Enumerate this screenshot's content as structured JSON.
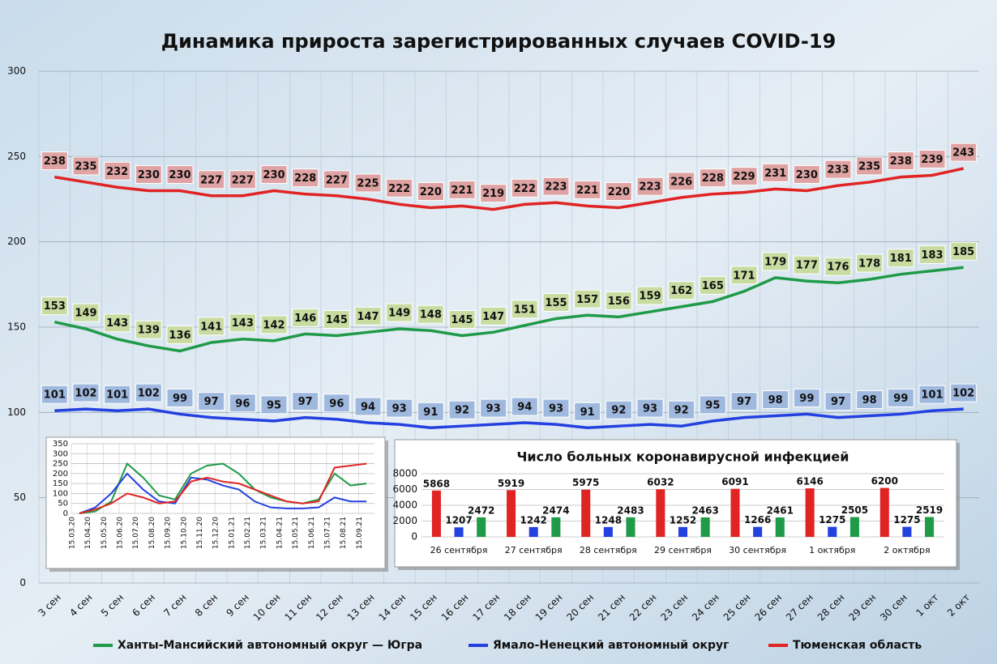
{
  "chart_data": [
    {
      "type": "line",
      "title": "Динамика прироста зарегистрированных случаев COVID-19",
      "categories": [
        "3 сен",
        "4 сен",
        "5 сен",
        "6 сен",
        "7 сен",
        "8 сен",
        "9 сен",
        "10 сен",
        "11 сен",
        "12 сен",
        "13 сен",
        "14 сен",
        "15 сен",
        "16 сен",
        "17 сен",
        "18 сен",
        "19 сен",
        "20 сен",
        "21 сен",
        "22 сен",
        "23 сен",
        "24 сен",
        "25 сен",
        "26 сен",
        "27 сен",
        "28 сен",
        "29 сен",
        "30 сен",
        "1 окт",
        "2 окт"
      ],
      "series": [
        {
          "name": "Ханты-Мансийский автономный округ — Югра",
          "color": "#1f9a48",
          "label_color": "#c8dca2",
          "values": [
            153,
            149,
            143,
            139,
            136,
            141,
            143,
            142,
            146,
            145,
            147,
            149,
            148,
            145,
            147,
            151,
            155,
            157,
            156,
            159,
            162,
            165,
            171,
            179,
            177,
            176,
            178,
            181,
            183,
            185
          ]
        },
        {
          "name": "Ямало-Ненецкий автономный округ",
          "color": "#2340e0",
          "label_color": "#9fb8de",
          "values": [
            101,
            102,
            101,
            102,
            99,
            97,
            96,
            95,
            97,
            96,
            94,
            93,
            91,
            92,
            93,
            94,
            93,
            91,
            92,
            93,
            92,
            95,
            97,
            98,
            99,
            97,
            98,
            99,
            101,
            102
          ]
        },
        {
          "name": "Тюменская область",
          "color": "#e02424",
          "label_color": "#e0a3a3",
          "values": [
            238,
            235,
            232,
            230,
            230,
            227,
            227,
            230,
            228,
            227,
            225,
            222,
            220,
            221,
            219,
            222,
            223,
            221,
            220,
            223,
            226,
            228,
            229,
            231,
            230,
            233,
            235,
            238,
            239,
            243
          ]
        }
      ],
      "ylim": [
        0,
        300
      ],
      "yticks": [
        0,
        50,
        100,
        150,
        200,
        250,
        300
      ],
      "grid": true,
      "data_labels": true,
      "legend": "bottom"
    },
    {
      "type": "line",
      "categories": [
        "15.03.20",
        "15.04.20",
        "15.05.20",
        "15.06.20",
        "15.07.20",
        "15.08.20",
        "15.09.20",
        "15.10.20",
        "15.11.20",
        "15.12.20",
        "15.01.21",
        "15.02.21",
        "15.03.21",
        "15.04.21",
        "15.05.21",
        "15.06.21",
        "15.07.21",
        "15.08.21",
        "15.09.21"
      ],
      "series": [
        {
          "color": "#1f9a48",
          "values": [
            0,
            10,
            60,
            250,
            180,
            90,
            70,
            200,
            240,
            250,
            200,
            120,
            80,
            60,
            50,
            70,
            200,
            140,
            150
          ]
        },
        {
          "color": "#2340e0",
          "values": [
            0,
            30,
            100,
            200,
            120,
            60,
            50,
            180,
            170,
            140,
            120,
            60,
            30,
            25,
            25,
            30,
            80,
            60,
            60
          ]
        },
        {
          "color": "#e02424",
          "values": [
            0,
            20,
            50,
            100,
            80,
            50,
            60,
            160,
            180,
            160,
            150,
            120,
            90,
            60,
            50,
            60,
            230,
            240,
            250
          ]
        }
      ],
      "ylim": [
        0,
        350
      ],
      "yticks": [
        0,
        50,
        100,
        150,
        200,
        250,
        300,
        350
      ],
      "grid": true
    },
    {
      "type": "bar",
      "title": "Число больных коронавирусной  инфекцией",
      "categories": [
        "26 сентября",
        "27 сентября",
        "28 сентября",
        "29 сентября",
        "30 сентября",
        "1 октября",
        "2 октября"
      ],
      "series": [
        {
          "color": "#e02424",
          "values": [
            5868,
            5919,
            5975,
            6032,
            6091,
            6146,
            6200
          ]
        },
        {
          "color": "#2340e0",
          "values": [
            1207,
            1242,
            1248,
            1252,
            1266,
            1275,
            1275
          ]
        },
        {
          "color": "#1f9a48",
          "values": [
            2472,
            2474,
            2483,
            2463,
            2461,
            2505,
            2519
          ]
        }
      ],
      "ylim": [
        0,
        8000
      ],
      "yticks": [
        0,
        2000,
        4000,
        6000,
        8000
      ],
      "grid": true,
      "data_labels": true
    }
  ]
}
